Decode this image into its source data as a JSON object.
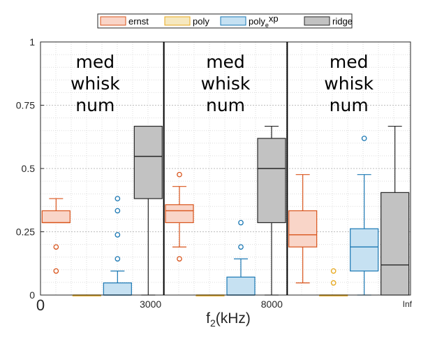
{
  "chart_data": {
    "type": "box",
    "x_ticks": [
      "0",
      "3000",
      "8000",
      "Inf"
    ],
    "xlabel": {
      "prefix": "f",
      "sub": "2",
      "suffix": "(kHz)"
    },
    "ylim": [
      0,
      1
    ],
    "y_ticks": [
      {
        "value": 0,
        "label": "0"
      },
      {
        "value": 0.25,
        "label": "0.25"
      },
      {
        "value": 0.5,
        "label": "0.5"
      },
      {
        "value": 0.75,
        "label": "0.75"
      },
      {
        "value": 1,
        "label": "1"
      }
    ],
    "grid": true,
    "legend_position": "top",
    "annotations": [
      "med",
      "whisk",
      "num"
    ],
    "series": [
      {
        "name": "ernst",
        "name_base": "ernst",
        "name_sup": "",
        "name_tail": "",
        "fill": "#f9d5c8",
        "edge": "#d9541b"
      },
      {
        "name": "poly",
        "name_base": "poly",
        "name_sup": "",
        "name_tail": "",
        "fill": "#f6e8c0",
        "edge": "#e8a91d"
      },
      {
        "name": "polyexp",
        "name_base": "poly",
        "name_sup": "e",
        "name_tail": "xp",
        "fill": "#c6e1f2",
        "edge": "#1a78b4"
      },
      {
        "name": "ridge",
        "name_base": "ridge",
        "name_sup": "",
        "name_tail": "",
        "fill": "#c2c2c2",
        "edge": "#262626"
      }
    ],
    "groups": [
      {
        "range": [
          "0",
          "3000"
        ],
        "boxes": {
          "ernst": {
            "q1": 0.286,
            "median": 0.286,
            "q3": 0.333,
            "whisker_low": 0.286,
            "whisker_high": 0.381,
            "outliers": [
              0.19,
              0.095
            ]
          },
          "poly": {
            "q1": 0,
            "median": 0,
            "q3": 0,
            "whisker_low": 0,
            "whisker_high": 0,
            "outliers": []
          },
          "polyexp": {
            "q1": 0,
            "median": 0,
            "q3": 0.048,
            "whisker_low": 0,
            "whisker_high": 0.095,
            "outliers": [
              0.381,
              0.333,
              0.238,
              0.143
            ]
          },
          "ridge": {
            "q1": 0.381,
            "median": 0.548,
            "q3": 0.667,
            "whisker_low": 0,
            "whisker_high": 0.667,
            "outliers": []
          }
        }
      },
      {
        "range": [
          "3000",
          "8000"
        ],
        "boxes": {
          "ernst": {
            "q1": 0.286,
            "median": 0.333,
            "q3": 0.357,
            "whisker_low": 0.19,
            "whisker_high": 0.429,
            "outliers": [
              0.476,
              0.143
            ]
          },
          "poly": {
            "q1": 0,
            "median": 0,
            "q3": 0,
            "whisker_low": 0,
            "whisker_high": 0,
            "outliers": []
          },
          "polyexp": {
            "q1": 0,
            "median": 0,
            "q3": 0.071,
            "whisker_low": 0,
            "whisker_high": 0.143,
            "outliers": [
              0.286,
              0.19
            ]
          },
          "ridge": {
            "q1": 0.286,
            "median": 0.5,
            "q3": 0.619,
            "whisker_low": 0,
            "whisker_high": 0.667,
            "outliers": []
          }
        }
      },
      {
        "range": [
          "8000",
          "Inf"
        ],
        "boxes": {
          "ernst": {
            "q1": 0.19,
            "median": 0.238,
            "q3": 0.333,
            "whisker_low": 0.048,
            "whisker_high": 0.476,
            "outliers": []
          },
          "poly": {
            "q1": 0,
            "median": 0,
            "q3": 0,
            "whisker_low": 0,
            "whisker_high": 0,
            "outliers": [
              0.095,
              0.048
            ]
          },
          "polyexp": {
            "q1": 0.095,
            "median": 0.19,
            "q3": 0.262,
            "whisker_low": 0,
            "whisker_high": 0.476,
            "outliers": [
              0.619
            ]
          },
          "ridge": {
            "q1": 0,
            "median": 0.119,
            "q3": 0.405,
            "whisker_low": 0,
            "whisker_high": 0.667,
            "outliers": []
          }
        }
      }
    ]
  }
}
